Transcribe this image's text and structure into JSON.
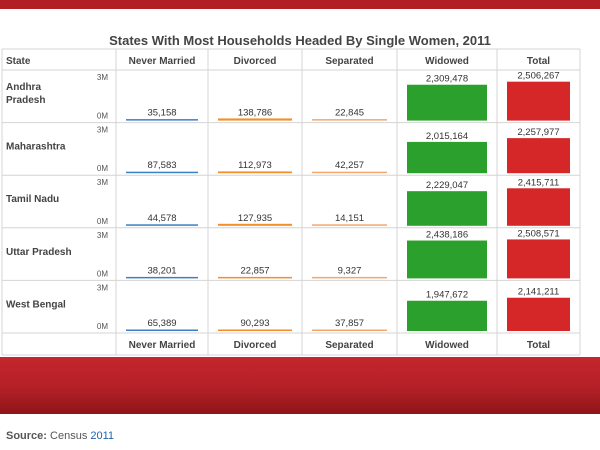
{
  "chart_data": {
    "type": "table",
    "title": "States With Most Households Headed By Single Women, 2011",
    "row_header": "State",
    "columns": [
      "Never Married",
      "Divorced",
      "Separated",
      "Widowed",
      "Total"
    ],
    "column_colors": [
      "#3b7fc4",
      "#f28e2b",
      "#f5a66b",
      "#2ca02c",
      "#d62728"
    ],
    "bar_scale_labels": [
      "3M",
      "0M"
    ],
    "bar_scale_max": 3000000,
    "categories": [
      "Andhra Pradesh",
      "Maharashtra",
      "Tamil Nadu",
      "Uttar Pradesh",
      "West Bengal"
    ],
    "series": [
      {
        "name": "Never Married",
        "values": [
          35158,
          87583,
          44578,
          38201,
          65389
        ],
        "labels": [
          "35,158",
          "87,583",
          "44,578",
          "38,201",
          "65,389"
        ]
      },
      {
        "name": "Divorced",
        "values": [
          138786,
          112973,
          127935,
          22857,
          90293
        ],
        "labels": [
          "138,786",
          "112,973",
          "127,935",
          "22,857",
          "90,293"
        ]
      },
      {
        "name": "Separated",
        "values": [
          22845,
          42257,
          14151,
          9327,
          37857
        ],
        "labels": [
          "22,845",
          "42,257",
          "14,151",
          "9,327",
          "37,857"
        ]
      },
      {
        "name": "Widowed",
        "values": [
          2309478,
          2015164,
          2229047,
          2438186,
          1947672
        ],
        "labels": [
          "2,309,478",
          "2,015,164",
          "2,229,047",
          "2,438,186",
          "1,947,672"
        ]
      },
      {
        "name": "Total",
        "values": [
          2506267,
          2257977,
          2415711,
          2508571,
          2141211
        ],
        "labels": [
          "2,506,267",
          "2,257,977",
          "2,415,711",
          "2,508,571",
          "2,141,211"
        ]
      }
    ]
  },
  "source": {
    "label": "Source:",
    "name": "Census",
    "year": "2011"
  }
}
